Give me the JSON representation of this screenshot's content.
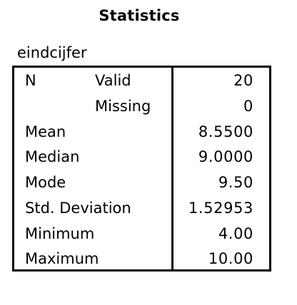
{
  "title": "Statistics",
  "variable": "eindcijfer",
  "rows": [
    {
      "label": "N",
      "sublabel": "Valid",
      "value": "20"
    },
    {
      "label": "",
      "sublabel": "Missing",
      "value": "0"
    },
    {
      "label": "Mean",
      "sublabel": "",
      "value": "8.5500"
    },
    {
      "label": "Median",
      "sublabel": "",
      "value": "9.0000"
    },
    {
      "label": "Mode",
      "sublabel": "",
      "value": "9.50"
    },
    {
      "label": "Std. Deviation",
      "sublabel": "",
      "value": "1.52953"
    },
    {
      "label": "Minimum",
      "sublabel": "",
      "value": "4.00"
    },
    {
      "label": "Maximum",
      "sublabel": "",
      "value": "10.00"
    }
  ]
}
